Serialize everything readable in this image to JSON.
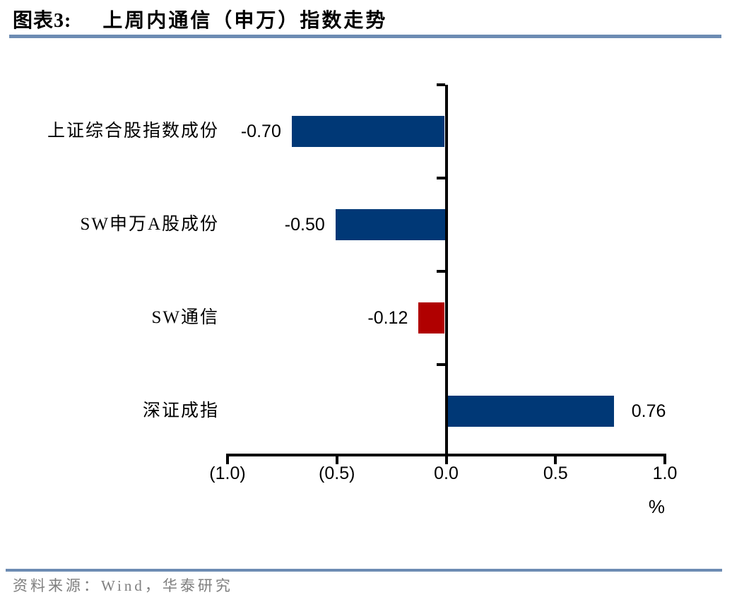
{
  "header": {
    "figure_label": "图表3:",
    "title": "上周内通信（申万）指数走势"
  },
  "footer": {
    "source": "资料来源：Wind，华泰研究"
  },
  "chart_data": {
    "type": "bar",
    "orientation": "horizontal",
    "title": "上周内通信（申万）指数走势",
    "categories": [
      "上证综合股指数成份",
      "SW申万A股成份",
      "SW通信",
      "深证成指"
    ],
    "values": [
      -0.7,
      -0.5,
      -0.12,
      0.76
    ],
    "value_labels": [
      "-0.70",
      "-0.50",
      "-0.12",
      "0.76"
    ],
    "bar_colors": [
      "#003876",
      "#003876",
      "#b00000",
      "#003876"
    ],
    "xlim": [
      -1.0,
      1.0
    ],
    "x_ticks": [
      -1.0,
      -0.5,
      0.0,
      0.5,
      1.0
    ],
    "x_tick_labels": [
      "(1.0)",
      "(0.5)",
      "0.0",
      "0.5",
      "1.0"
    ],
    "unit_label": "%",
    "grid": false,
    "legend": "none",
    "colors": {
      "navy": "#003876",
      "red": "#b00000",
      "rule_blue": "#6d8cb3",
      "source_gray": "#7f7f7f",
      "axis_black": "#000000"
    }
  }
}
